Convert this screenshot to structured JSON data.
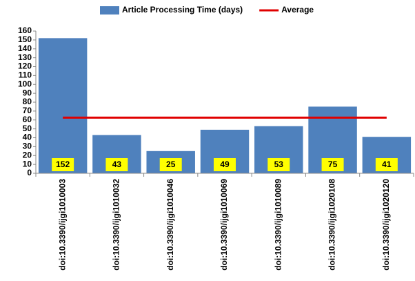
{
  "chart_data": {
    "type": "bar",
    "categories": [
      "doi:10.3390/ijgi1010003",
      "doi:10.3390/ijgi1010032",
      "doi:10.3390/ijgi1010046",
      "doi:10.3390/ijgi1010069",
      "doi:10.3390/ijgi1010089",
      "doi:10.3390/ijgi1020108",
      "doi:10.3390/ijgi1020120"
    ],
    "series": [
      {
        "name": "Article Processing Time (days)",
        "color": "#4f81bd",
        "type": "bar",
        "values": [
          152,
          43,
          25,
          49,
          53,
          75,
          41
        ]
      },
      {
        "name": "Average",
        "color": "#e00000",
        "type": "line",
        "values": [
          62.6,
          62.6,
          62.6,
          62.6,
          62.6,
          62.6,
          62.6
        ]
      }
    ],
    "ylim": [
      0,
      160
    ],
    "yticks": [
      0,
      10,
      20,
      30,
      40,
      50,
      60,
      70,
      80,
      90,
      100,
      110,
      120,
      130,
      140,
      150,
      160
    ],
    "grid": false,
    "legend": "top",
    "label_color": "#ffff00"
  }
}
